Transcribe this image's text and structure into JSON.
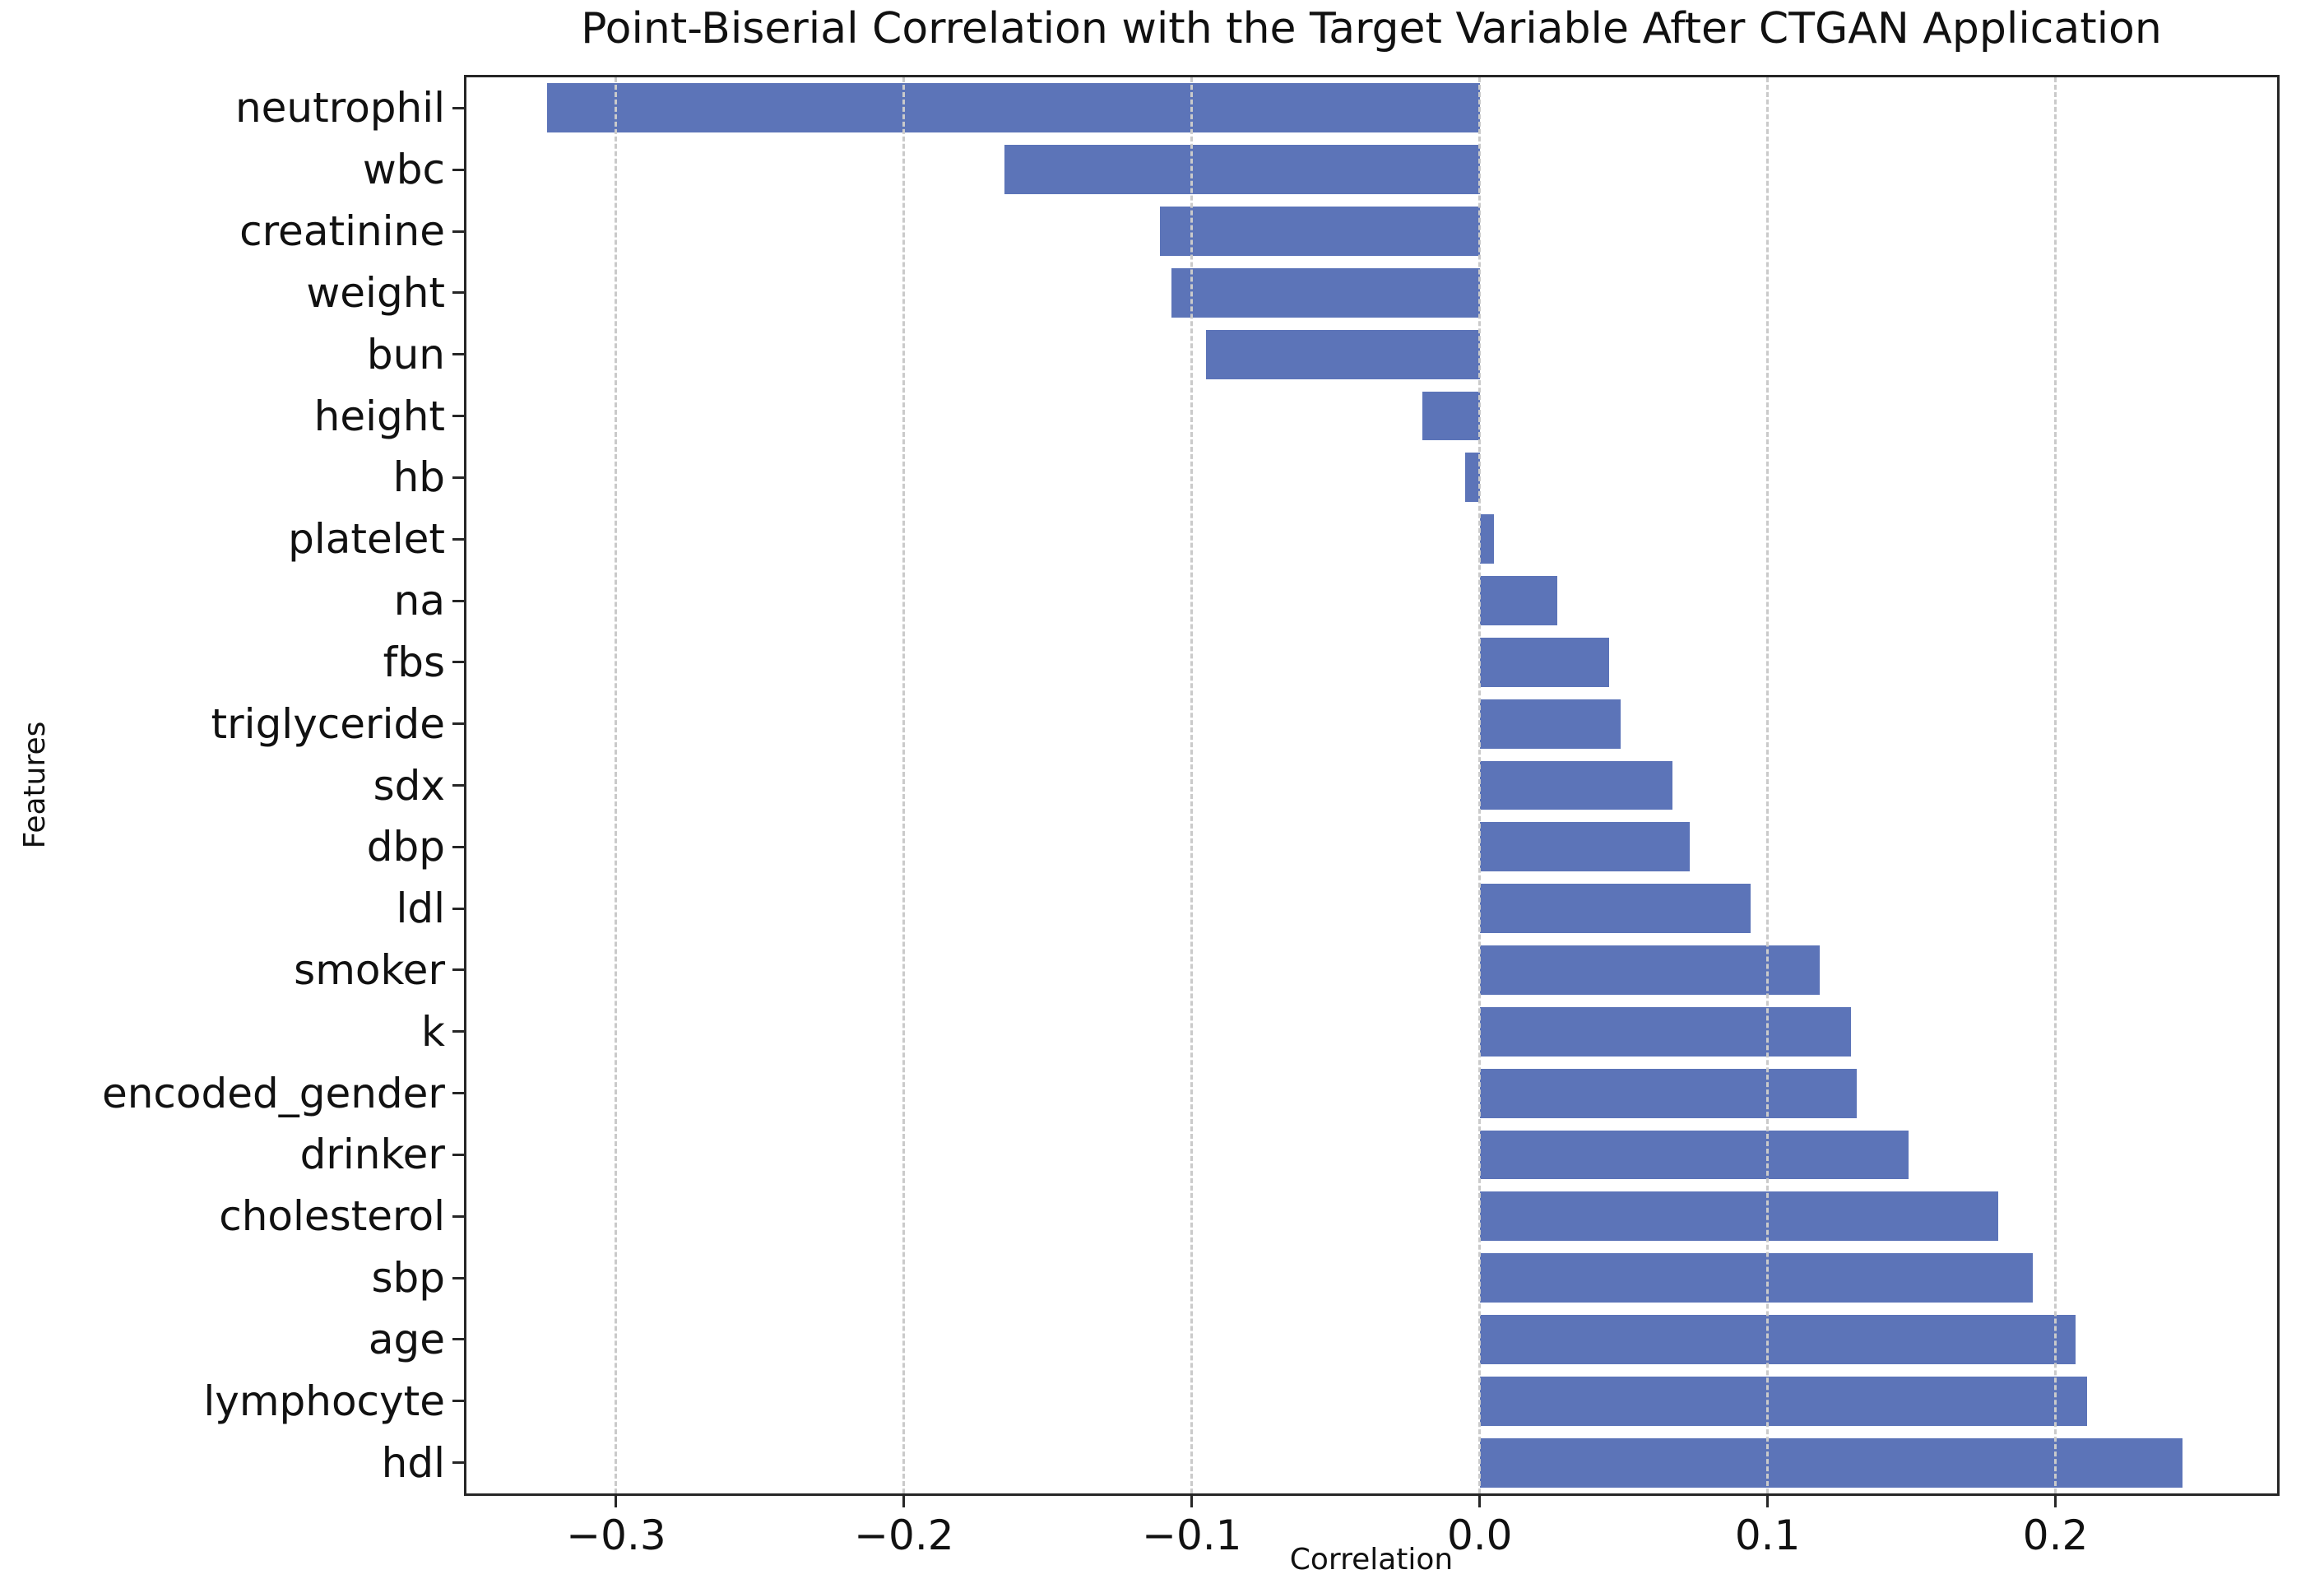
{
  "figure": {
    "title": "Point-Biserial Correlation with the Target Variable After CTGAN Application",
    "xlabel": "Correlation",
    "ylabel": "Features"
  },
  "chart_data": {
    "type": "bar",
    "orientation": "horizontal",
    "title": "Point-Biserial Correlation with the Target Variable After CTGAN Application",
    "xlabel": "Correlation",
    "ylabel": "Features",
    "categories": [
      "neutrophil",
      "wbc",
      "creatinine",
      "weight",
      "bun",
      "height",
      "hb",
      "platelet",
      "na",
      "fbs",
      "triglyceride",
      "sdx",
      "dbp",
      "ldl",
      "smoker",
      "k",
      "encoded_gender",
      "drinker",
      "cholesterol",
      "sbp",
      "age",
      "lymphocyte",
      "hdl"
    ],
    "values": [
      -0.324,
      -0.165,
      -0.111,
      -0.107,
      -0.095,
      -0.02,
      -0.005,
      0.005,
      0.027,
      0.045,
      0.049,
      0.067,
      0.073,
      0.094,
      0.118,
      0.129,
      0.131,
      0.149,
      0.18,
      0.192,
      0.207,
      0.211,
      0.244
    ],
    "xlim": [
      -0.352,
      0.277
    ],
    "x_ticks": [
      -0.3,
      -0.2,
      -0.1,
      0.0,
      0.1,
      0.2
    ],
    "x_tick_labels": [
      "−0.3",
      "−0.2",
      "−0.1",
      "0.0",
      "0.1",
      "0.2"
    ],
    "grid": true,
    "legend_position": "none",
    "bar_color": "#5c74b8",
    "grid_color": "#cacaca",
    "spine_color": "#262626",
    "bar_width_ratio": 0.8
  }
}
